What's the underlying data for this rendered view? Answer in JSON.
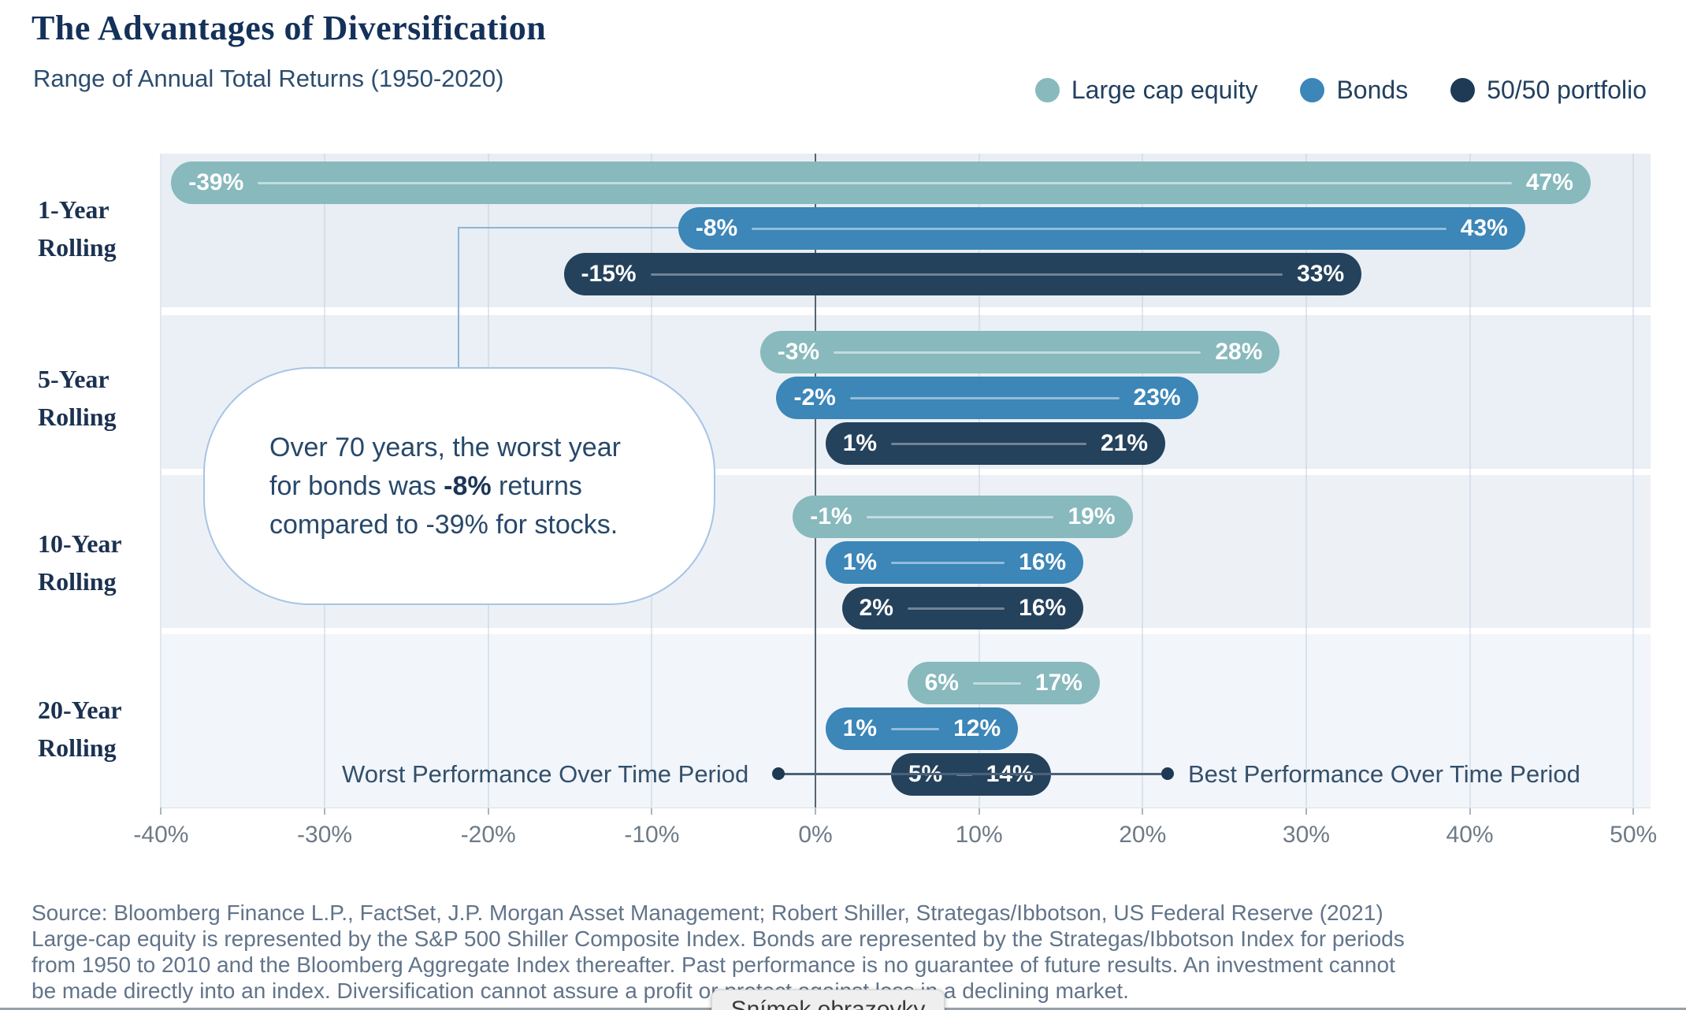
{
  "header": {
    "title": "The Advantages of Diversification",
    "subtitle": "Range of Annual Total Returns (1950-2020)"
  },
  "legend": {
    "items": [
      {
        "label": "Large cap equity",
        "color": "#87b9bd"
      },
      {
        "label": "Bonds",
        "color": "#3c86b8"
      },
      {
        "label": "50/50 portfolio",
        "color": "#1f3a54"
      }
    ]
  },
  "chart_data": {
    "type": "bar",
    "subtype": "horizontal-range",
    "title": "The Advantages of Diversification",
    "subtitle": "Range of Annual Total Returns (1950-2020)",
    "x_axis": {
      "min": -40,
      "max": 50,
      "step": 10,
      "tick_labels": [
        "-40%",
        "-30%",
        "-20%",
        "-10%",
        "0%",
        "10%",
        "20%",
        "30%",
        "40%",
        "50%"
      ],
      "zero_line": true,
      "grid": true
    },
    "categories": [
      {
        "label": "1-Year Rolling",
        "lines": [
          "1-Year",
          "Rolling"
        ]
      },
      {
        "label": "5-Year Rolling",
        "lines": [
          "5-Year",
          "Rolling"
        ]
      },
      {
        "label": "10-Year Rolling",
        "lines": [
          "10-Year",
          "Rolling"
        ]
      },
      {
        "label": "20-Year Rolling",
        "lines": [
          "20-Year",
          "Rolling"
        ]
      }
    ],
    "series": [
      {
        "name": "Large cap equity",
        "color": "#87b9bd",
        "ranges": [
          [
            -39,
            47
          ],
          [
            -3,
            28
          ],
          [
            -1,
            19
          ],
          [
            6,
            17
          ]
        ]
      },
      {
        "name": "Bonds",
        "color": "#3c86b8",
        "ranges": [
          [
            -8,
            43
          ],
          [
            -2,
            23
          ],
          [
            1,
            16
          ],
          [
            1,
            12
          ]
        ]
      },
      {
        "name": "50/50 portfolio",
        "color": "#25425c",
        "ranges": [
          [
            -15,
            33
          ],
          [
            1,
            21
          ],
          [
            2,
            16
          ],
          [
            5,
            14
          ]
        ]
      }
    ],
    "value_suffix": "%",
    "band_colors": [
      "#e8eef4",
      "#eaf0f5",
      "#edf1f6",
      "#f2f5f9"
    ],
    "legend_position": "top-right"
  },
  "annotations": {
    "callout": {
      "lines": [
        [
          {
            "text": "Over 70 years, the worst year"
          }
        ],
        [
          {
            "text": "for bonds was "
          },
          {
            "text": "-8%",
            "bold": true
          },
          {
            "text": " returns"
          }
        ],
        [
          {
            "text": "compared to -39% for stocks."
          }
        ]
      ]
    },
    "worst_label": "Worst Performance Over Time Period",
    "best_label": "Best Performance Over Time Period"
  },
  "footnote": {
    "lines": [
      "Source: Bloomberg Finance L.P., FactSet, J.P. Morgan Asset Management; Robert Shiller, Strategas/Ibbotson, US Federal Reserve (2021)",
      "Large-cap equity is represented by the S&P 500 Shiller Composite Index. Bonds are represented by the Strategas/Ibbotson Index for periods",
      "from 1950 to 2010 and the Bloomberg Aggregate Index thereafter. Past performance is no guarantee of future results. An investment cannot",
      "be made directly into an index. Diversification cannot assure a profit or protect against loss in a declining market."
    ]
  },
  "overlay": {
    "label": "Snímek obrazovky"
  }
}
